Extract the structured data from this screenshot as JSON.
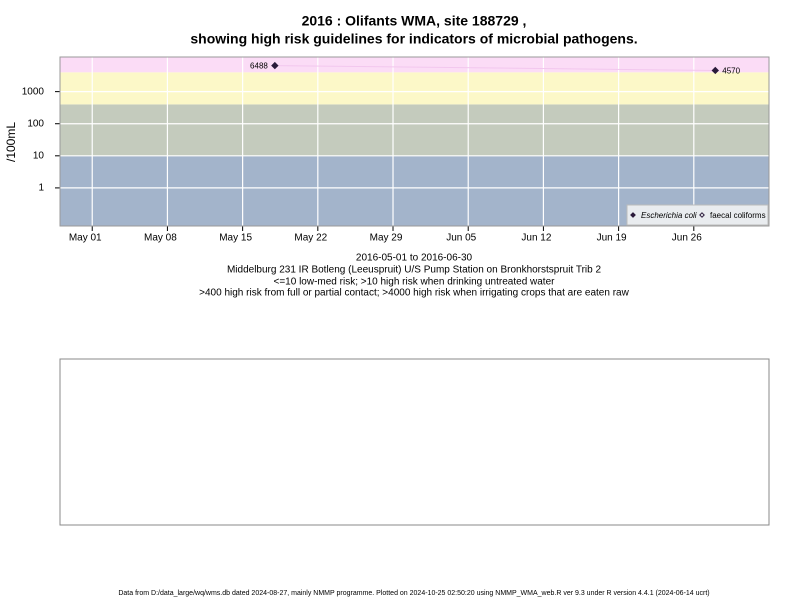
{
  "chart_data": {
    "type": "scatter",
    "title": "2016 : Olifants WMA, site 188729 ,",
    "subtitle": "showing high risk guidelines for indicators of microbial pathogens.",
    "y_label": "/100mL",
    "notes": [
      "2016-05-01 to 2016-06-30",
      "Middelburg 231 IR Botleng (Leeuspruit) U/S Pump Station on Bronkhorstspruit Trib 2",
      "<=10 low-med risk; >10 high risk when drinking untreated water",
      ">400 high risk from full or partial contact; >4000 high risk when irrigating crops that are eaten raw"
    ],
    "footer": "Data from D:/data_large/wq/wms.db dated 2024-08-27, mainly NMMP programme. Plotted on 2024-10-25 02:50:20 using NMMP_WMA_web.R ver 9.3 under R version 4.4.1 (2024-06-14 ucrt)",
    "x": [
      "2016-05-18",
      "2016-06-28"
    ],
    "series": [
      {
        "name": "Escherichia coli",
        "color": "#2a1a3a",
        "values": [
          6488,
          4570
        ]
      },
      {
        "name": "faecal coliforms",
        "color": "#2a1a3a",
        "values": [
          null,
          null
        ]
      }
    ],
    "log_y": true,
    "ylim": [
      0.065,
      12000
    ],
    "yticks": [
      1,
      10,
      100,
      1000
    ],
    "xlim": [
      "2016-04-28",
      "2016-07-03"
    ],
    "xticks": [
      {
        "value": "2016-05-01",
        "label": "May 01"
      },
      {
        "value": "2016-05-08",
        "label": "May 08"
      },
      {
        "value": "2016-05-15",
        "label": "May 15"
      },
      {
        "value": "2016-05-22",
        "label": "May 22"
      },
      {
        "value": "2016-05-29",
        "label": "May 29"
      },
      {
        "value": "2016-06-05",
        "label": "Jun 05"
      },
      {
        "value": "2016-06-12",
        "label": "Jun 12"
      },
      {
        "value": "2016-06-19",
        "label": "Jun 19"
      },
      {
        "value": "2016-06-26",
        "label": "Jun 26"
      }
    ],
    "thresholds": [
      10,
      400,
      4000
    ],
    "band_colors": [
      "#a3b4cb",
      "#c4cbbd",
      "#fcf8c8",
      "#fbdcf6"
    ],
    "grid": true,
    "legend": "bottom-right"
  }
}
